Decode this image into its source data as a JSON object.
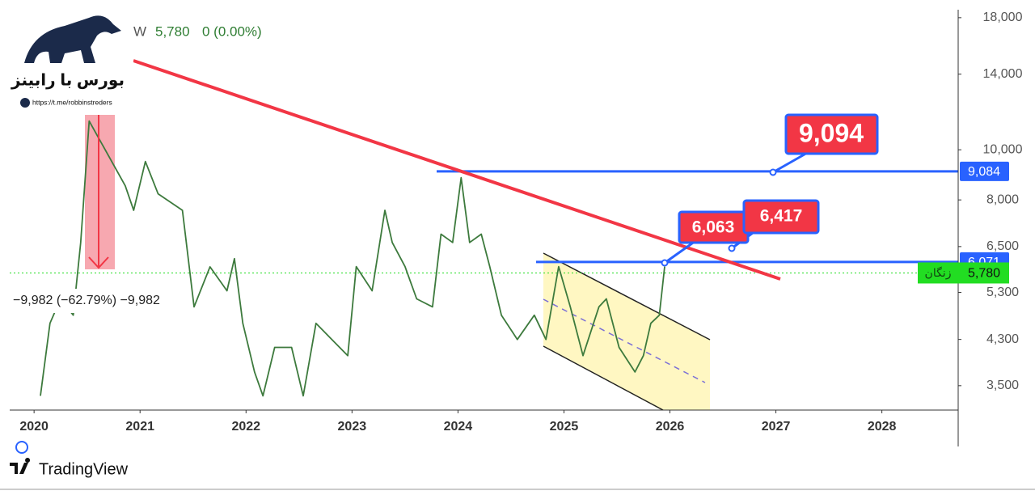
{
  "header": {
    "interval": "W",
    "price": "5,780",
    "change": "0 (0.00%)"
  },
  "logo": {
    "title": "بورس با رابینز",
    "link": "https://t.me/robbinstreders"
  },
  "footer": {
    "brand": "TradingView"
  },
  "chart_data": {
    "type": "line",
    "x": [
      2020.06,
      2020.15,
      2020.25,
      2020.37,
      2020.44,
      2020.52,
      2020.86,
      2020.94,
      2021.05,
      2021.17,
      2021.4,
      2021.51,
      2021.66,
      2021.82,
      2021.89,
      2021.97,
      2022.08,
      2022.16,
      2022.27,
      2022.43,
      2022.54,
      2022.66,
      2022.81,
      2022.96,
      2023.04,
      2023.19,
      2023.31,
      2023.38,
      2023.5,
      2023.61,
      2023.76,
      2023.84,
      2023.95,
      2024.03,
      2024.11,
      2024.22,
      2024.3,
      2024.41,
      2024.56,
      2024.72,
      2024.83,
      2024.95,
      2025.06,
      2025.18,
      2025.33,
      2025.4,
      2025.52,
      2025.67,
      2025.75,
      2025.82,
      2025.9,
      2025.95
    ],
    "values": [
      3345,
      4620,
      5150,
      4790,
      6620,
      11360,
      8520,
      7640,
      9490,
      8220,
      7640,
      4970,
      5940,
      5340,
      6160,
      4620,
      3720,
      3345,
      4150,
      4150,
      3345,
      4620,
      4300,
      4000,
      5945,
      5340,
      7640,
      6620,
      5945,
      5150,
      4970,
      6870,
      6620,
      8830,
      6620,
      6870,
      5945,
      4790,
      4300,
      4790,
      4300,
      5945,
      4970,
      4000,
      4970,
      5150,
      4150,
      3720,
      4000,
      4620,
      4790,
      5945
    ],
    "color": "#3d7a3d",
    "log_scale": true,
    "ylim": [
      3140,
      18650
    ],
    "yticks": [
      {
        "value": 3500,
        "label": "3,500"
      },
      {
        "value": 4300,
        "label": "4,300"
      },
      {
        "value": 5300,
        "label": "5,300"
      },
      {
        "value": 6500,
        "label": "6,500"
      },
      {
        "value": 8000,
        "label": "8,000"
      },
      {
        "value": 10000,
        "label": "10,000"
      },
      {
        "value": 14000,
        "label": "14,000"
      },
      {
        "value": 18000,
        "label": "18,000"
      }
    ],
    "xlim": [
      2019.77,
      2028.72
    ],
    "xticks": [
      2020,
      2021,
      2022,
      2023,
      2024,
      2025,
      2026,
      2027,
      2028
    ],
    "levels": [
      {
        "value": 9084,
        "label": "9,084",
        "color": "#2962ff"
      },
      {
        "value": 6071,
        "label": "6,071",
        "color": "#2962ff"
      }
    ],
    "last_price": {
      "value": 5780,
      "label": "5,780",
      "name": "زنگان",
      "color": "#22dd22"
    },
    "annotations": [
      "9,094",
      "6,063",
      "6,417"
    ],
    "measure": "−9,982 (−62.79%) −9,982"
  }
}
